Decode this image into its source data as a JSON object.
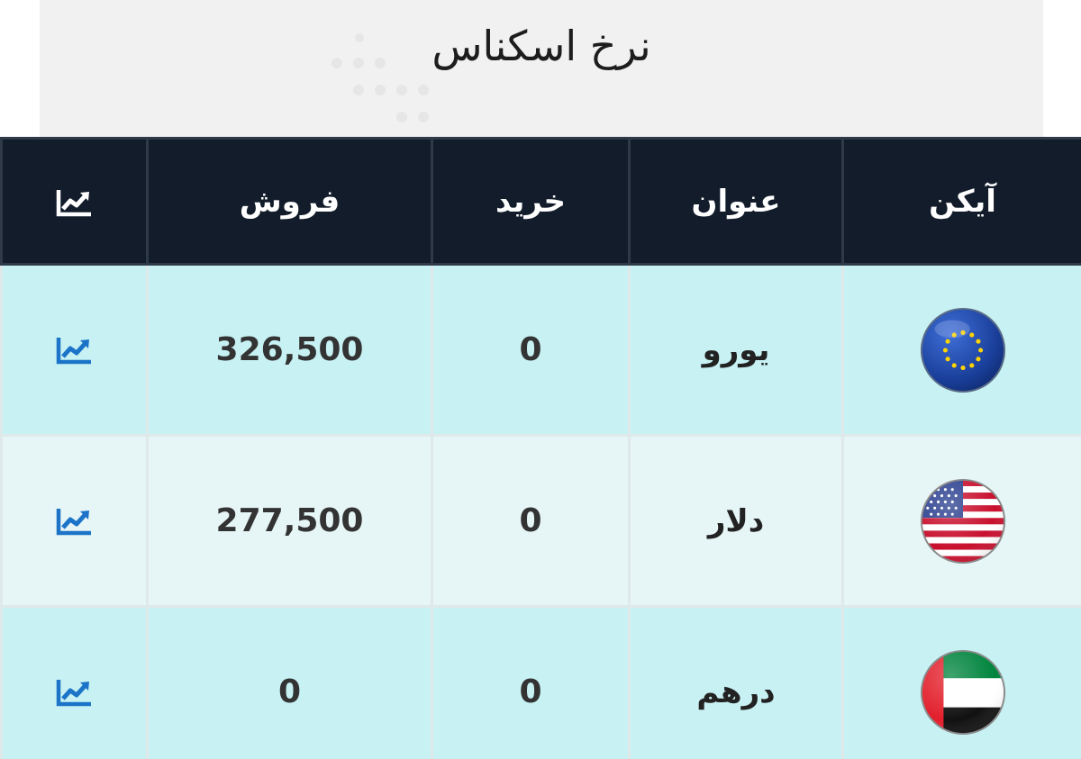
{
  "page": {
    "title": "نرخ اسکناس"
  },
  "table": {
    "headers": {
      "icon": "آیکن",
      "name": "عنوان",
      "buy": "خرید",
      "sell": "فروش",
      "chart_icon": "line-chart-icon"
    },
    "rows": [
      {
        "icon": "eu-flag-icon",
        "name": "یورو",
        "buy": "0",
        "sell": "326,500",
        "chart_icon": "line-chart-icon"
      },
      {
        "icon": "us-flag-icon",
        "name": "دلار",
        "buy": "0",
        "sell": "277,500",
        "chart_icon": "line-chart-icon"
      },
      {
        "icon": "uae-flag-icon",
        "name": "درهم",
        "buy": "0",
        "sell": "0",
        "chart_icon": "line-chart-icon"
      }
    ]
  },
  "colors": {
    "header_bg": "#121c2a",
    "row_odd_bg": "#c7f1f3",
    "row_even_bg": "#e6f5f6",
    "chart_icon": "#1c74c8"
  }
}
